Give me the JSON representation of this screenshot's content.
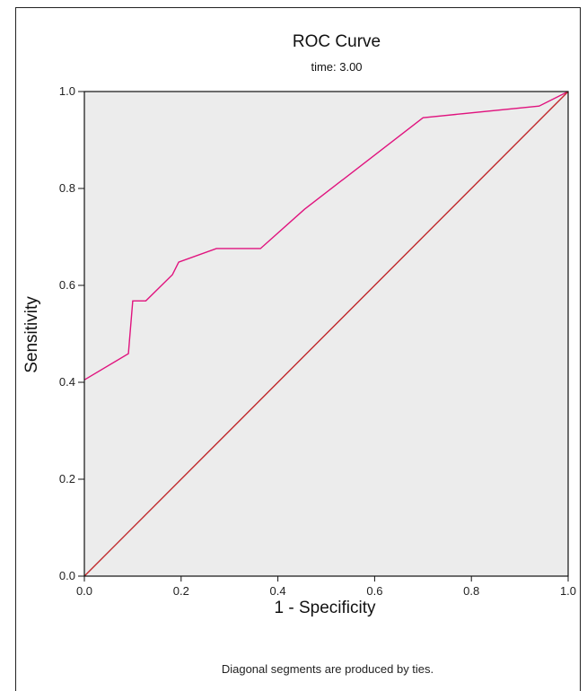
{
  "chart_data": {
    "type": "line",
    "title": "ROC Curve",
    "subtitle": "time: 3.00",
    "xlabel": "1 - Specificity",
    "ylabel": "Sensitivity",
    "xlim": [
      0,
      1
    ],
    "ylim": [
      0,
      1
    ],
    "x_ticks": [
      "0.0",
      "0.2",
      "0.4",
      "0.6",
      "0.8",
      "1.0"
    ],
    "y_ticks": [
      "0.0",
      "0.2",
      "0.4",
      "0.6",
      "0.8",
      "1.0"
    ],
    "grid": false,
    "plot_background": "#ECECEC",
    "series": [
      {
        "color": "#E0137E",
        "points": [
          [
            0.0,
            0.405
          ],
          [
            0.091,
            0.459
          ],
          [
            0.1,
            0.568
          ],
          [
            0.127,
            0.568
          ],
          [
            0.182,
            0.622
          ],
          [
            0.195,
            0.648
          ],
          [
            0.273,
            0.676
          ],
          [
            0.364,
            0.676
          ],
          [
            0.455,
            0.757
          ],
          [
            0.7,
            0.946
          ],
          [
            0.94,
            0.97
          ],
          [
            1.0,
            1.0
          ]
        ]
      },
      {
        "color": "#C0282B",
        "points": [
          [
            0,
            0
          ],
          [
            1,
            1
          ]
        ]
      }
    ],
    "footnote": "Diagonal segments are produced by ties."
  }
}
